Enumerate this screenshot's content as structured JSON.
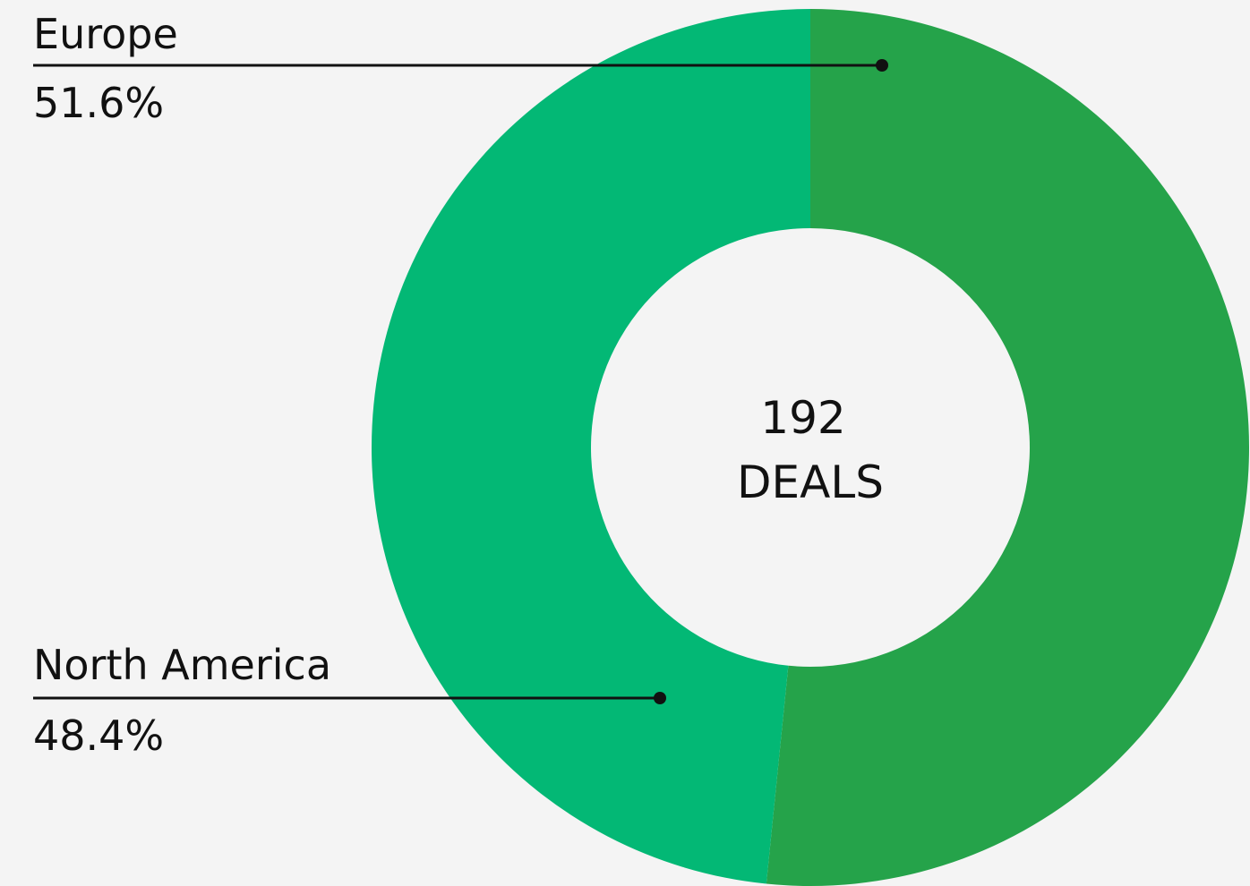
{
  "chart_data": {
    "type": "pie",
    "donut": true,
    "categories": [
      "Europe",
      "North America"
    ],
    "values": [
      51.6,
      48.4
    ],
    "value_labels": [
      "51.6%",
      "48.4%"
    ],
    "colors": [
      "#25a34a",
      "#03b875"
    ],
    "center_value": 192,
    "center_label": "DEALS"
  }
}
